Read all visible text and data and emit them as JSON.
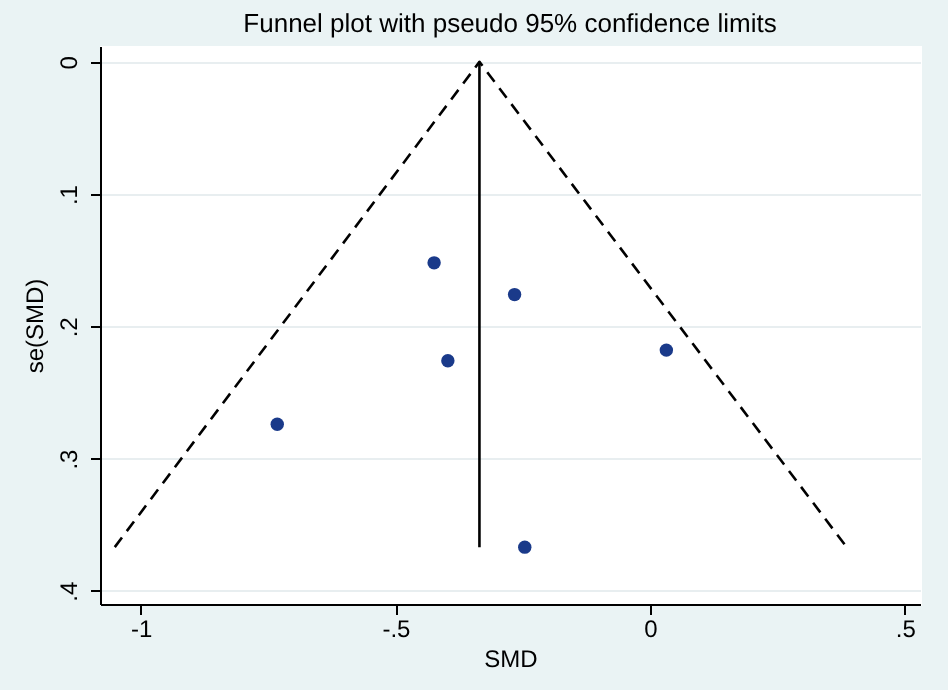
{
  "chart_data": {
    "type": "scatter",
    "title": "Funnel plot with pseudo 95% confidence limits",
    "xlabel": "SMD",
    "ylabel": "se(SMD)",
    "xlim": [
      -1.08,
      0.53
    ],
    "ylim": [
      0.41,
      -0.012
    ],
    "xticks": [
      {
        "value": -1,
        "label": "-1"
      },
      {
        "value": -0.5,
        "label": "-.5"
      },
      0,
      {
        "value": 0.5,
        "label": ".5"
      }
    ],
    "yticks": [
      0,
      {
        "value": 0.1,
        "label": ".1"
      },
      {
        "value": 0.2,
        "label": ".2"
      },
      {
        "value": 0.3,
        "label": ".3"
      },
      {
        "value": 0.4,
        "label": ".4"
      }
    ],
    "grid": "y",
    "series": [
      {
        "type": "scatter",
        "color": "#1a3a8a",
        "marker": "circle",
        "x": [
          -0.424,
          -0.266,
          -0.397,
          0.032,
          -0.732,
          -0.246
        ],
        "values": [
          0.152,
          0.176,
          0.226,
          0.218,
          0.274,
          0.367
        ]
      },
      {
        "type": "line",
        "color": "#000000",
        "line_style": "dashed",
        "marker": "none",
        "x": [
          -1.051,
          -0.335,
          0.386
        ],
        "values": [
          0.367,
          0,
          0.367
        ]
      },
      {
        "type": "line",
        "color": "#000000",
        "line_style": "solid",
        "marker": "none",
        "x": [
          -0.335,
          -0.335
        ],
        "values": [
          0,
          0.367
        ]
      }
    ]
  }
}
